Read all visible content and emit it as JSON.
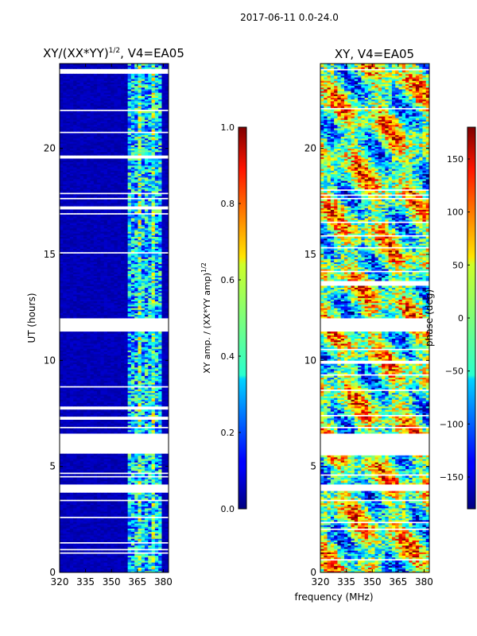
{
  "figure_title": "2017-06-11 0.0-24.0",
  "chart_data": [
    {
      "type": "heatmap",
      "title_main": "XY/(XX*YY)",
      "title_sup": "1/2",
      "title_suffix": ", V4=EA05",
      "xlabel": "",
      "ylabel": "UT (hours)",
      "xlim": [
        320,
        383
      ],
      "ylim": [
        0,
        24
      ],
      "xticks": [
        320,
        335,
        350,
        365,
        380
      ],
      "yticks": [
        0,
        5,
        10,
        15,
        20
      ],
      "active_band_mhz": [
        360,
        380
      ],
      "data_gaps_hours": [
        [
          3.7,
          4.1
        ],
        [
          4.6,
          4.7
        ],
        [
          5.6,
          6.5
        ],
        [
          11.3,
          12.0
        ],
        [
          19.5,
          19.6
        ],
        [
          23.5,
          23.7
        ]
      ],
      "colorbar": {
        "label_main": "XY amp. / (XX*YY amp)",
        "label_sup": "1/2",
        "min": 0.0,
        "max": 1.0,
        "ticks": [
          0.0,
          0.2,
          0.4,
          0.6,
          0.8,
          1.0
        ],
        "tick_labels": [
          "0.0",
          "0.2",
          "0.4",
          "0.6",
          "0.8",
          "1.0"
        ]
      }
    },
    {
      "type": "heatmap",
      "title_main": "XY, V4=EA05",
      "xlabel": "frequency (MHz)",
      "ylabel": "",
      "xlim": [
        320,
        383
      ],
      "ylim": [
        0,
        24
      ],
      "xticks": [
        320,
        335,
        350,
        365,
        380
      ],
      "yticks": [
        0,
        5,
        10,
        15,
        20
      ],
      "data_gaps_hours": [
        [
          3.8,
          4.1
        ],
        [
          4.5,
          4.6
        ],
        [
          5.5,
          6.5
        ],
        [
          11.3,
          12.0
        ]
      ],
      "colorbar": {
        "label": "phase (deg)",
        "min": -180,
        "max": 180,
        "ticks": [
          -150,
          -100,
          -50,
          0,
          50,
          100,
          150
        ],
        "tick_labels": [
          "−150",
          "−100",
          "−50",
          "0",
          "50",
          "100",
          "150"
        ]
      }
    }
  ]
}
